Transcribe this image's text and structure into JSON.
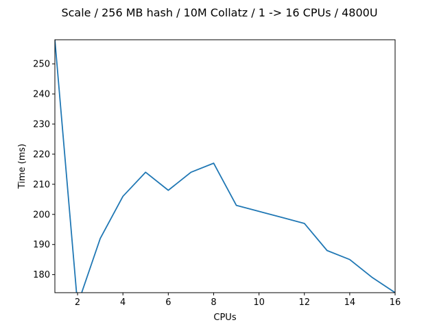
{
  "chart_data": {
    "type": "line",
    "title": "Scale / 256 MB hash / 10M Collatz / 1 -> 16 CPUs / 4800U",
    "xlabel": "CPUs",
    "ylabel": "Time (ms)",
    "xlim": [
      1,
      16
    ],
    "ylim": [
      174,
      258
    ],
    "xticks": [
      2,
      4,
      6,
      8,
      10,
      12,
      14,
      16
    ],
    "yticks": [
      180,
      190,
      200,
      210,
      220,
      230,
      240,
      250
    ],
    "grid": false,
    "series": [
      {
        "color": "#1f77b4",
        "x": [
          1,
          2,
          3,
          4,
          5,
          6,
          7,
          8,
          9,
          10,
          11,
          12,
          13,
          14,
          15,
          16
        ],
        "y": [
          258,
          170,
          192,
          206,
          214,
          208,
          214,
          217,
          203,
          201,
          199,
          197,
          188,
          185,
          179,
          174
        ]
      }
    ]
  }
}
